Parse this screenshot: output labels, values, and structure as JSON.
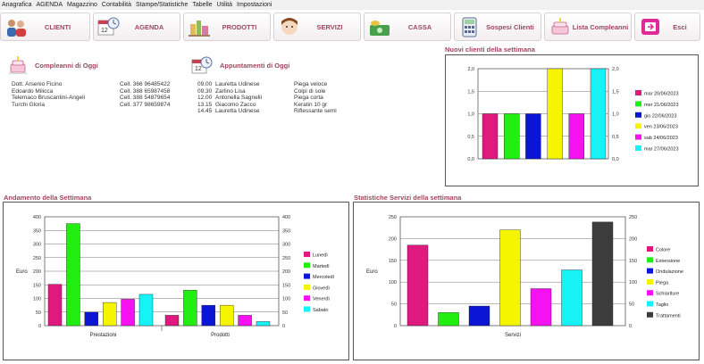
{
  "menu": [
    "Anagrafica",
    "AGENDA",
    "Magazzino",
    "Contabilità",
    "Stampe/Statistiche",
    "Tabelle",
    "Utilità",
    "Impostazioni"
  ],
  "toolbar": [
    {
      "label": "CLIENTI",
      "icon": "people-icon"
    },
    {
      "label": "AGENDA",
      "icon": "calendar-clock-icon"
    },
    {
      "label": "PRODOTTI",
      "icon": "products-icon"
    },
    {
      "label": "SERVIZI",
      "icon": "hairdresser-icon"
    },
    {
      "label": "CASSA",
      "icon": "cash-icon"
    },
    {
      "label": "Sospesi Clienti",
      "icon": "calculator-icon"
    },
    {
      "label": "Lista Compleanni",
      "icon": "cake-icon"
    },
    {
      "label": "Esci",
      "icon": "exit-icon"
    }
  ],
  "birthdays": {
    "title": "Compleanni di Oggi",
    "rows": [
      {
        "name": "Dott. Arsenio Ficino",
        "phone": "Cell. 366 96485422"
      },
      {
        "name": "Edoardo Milicca",
        "phone": "Cell. 388 65987458"
      },
      {
        "name": "Telemaco Bruscantini-Angeli",
        "phone": "Cell. 388 54879654"
      },
      {
        "name": "Turchi Gloria",
        "phone": "Cell. 377 98659874"
      }
    ]
  },
  "appointments": {
    "title": "Appuntamenti di Oggi",
    "rows": [
      {
        "time": "09.00",
        "client": "Lauretta Udinese",
        "service": "Piega veloce"
      },
      {
        "time": "09.30",
        "client": "Zarlino Lisa",
        "service": "Colpi di sole"
      },
      {
        "time": "12.00",
        "client": "Antonella Sagnelli",
        "service": "Piega corta"
      },
      {
        "time": "13.15",
        "client": "Giacomo Zacco",
        "service": "Keratin 10 gr"
      },
      {
        "time": "14.45",
        "client": "Lauretta Udinese",
        "service": "Riflessante semi"
      }
    ]
  },
  "titles": {
    "new_clients": "Nuovi clienti della settimana",
    "weekly_trend": "Andamento della Settimana",
    "services_stats": "Statistiche Servizi della settimana"
  },
  "colors": {
    "brand": "#a0455c",
    "pink": "#e0197e",
    "green": "#22ee11",
    "blue": "#0a16d4",
    "yellow": "#f5f500",
    "magenta": "#f511f0",
    "cyan": "#16f2f5",
    "dark": "#3c3c3c"
  },
  "chart_data": [
    {
      "type": "bar",
      "title": "Nuovi clienti della settimana",
      "categories": [
        "mar 20/06/2023",
        "mer 21/06/2023",
        "gio 22/06/2023",
        "ven 23/06/2023",
        "sab 24/06/2023",
        "mar 27/06/2023"
      ],
      "values": [
        1,
        1,
        1,
        2,
        1,
        2
      ],
      "colors": [
        "#e0197e",
        "#22ee11",
        "#0a16d4",
        "#f5f500",
        "#f511f0",
        "#16f2f5"
      ],
      "ylim": [
        0,
        2
      ],
      "yticks": [
        "0,0",
        "0,5",
        "1,0",
        "1,5",
        "2,0"
      ],
      "legend": "right"
    },
    {
      "type": "bar",
      "title": "Andamento della Settimana",
      "ylabel": "Euro",
      "groups": [
        "Prestazioni",
        "Prodotti"
      ],
      "series": [
        {
          "name": "Lunedì",
          "values": [
            152,
            38
          ],
          "color": "#e0197e"
        },
        {
          "name": "Martedì",
          "values": [
            375,
            130
          ],
          "color": "#22ee11"
        },
        {
          "name": "Mercoledì",
          "values": [
            50,
            75
          ],
          "color": "#0a16d4"
        },
        {
          "name": "Giovedì",
          "values": [
            85,
            75
          ],
          "color": "#f5f500"
        },
        {
          "name": "Venerdì",
          "values": [
            97,
            38
          ],
          "color": "#f511f0"
        },
        {
          "name": "Sabato",
          "values": [
            115,
            15
          ],
          "color": "#16f2f5"
        }
      ],
      "ylim": [
        0,
        400
      ],
      "yticks": [
        "0",
        "50",
        "100",
        "150",
        "200",
        "250",
        "300",
        "350",
        "400"
      ],
      "legend": "right"
    },
    {
      "type": "bar",
      "title": "Statistiche Servizi della settimana",
      "ylabel": "Euro",
      "xlabel": "Servizi",
      "categories": [
        "Colore",
        "Extensione",
        "Ondulazione",
        "Piega",
        "Schiariture",
        "Taglio",
        "Trattamenti"
      ],
      "values": [
        185,
        30,
        45,
        220,
        85,
        128,
        238
      ],
      "colors": [
        "#e0197e",
        "#22ee11",
        "#0a16d4",
        "#f5f500",
        "#f511f0",
        "#16f2f5",
        "#3c3c3c"
      ],
      "ylim": [
        0,
        250
      ],
      "yticks": [
        "0",
        "50",
        "100",
        "150",
        "200",
        "250"
      ],
      "legend": "right"
    }
  ]
}
